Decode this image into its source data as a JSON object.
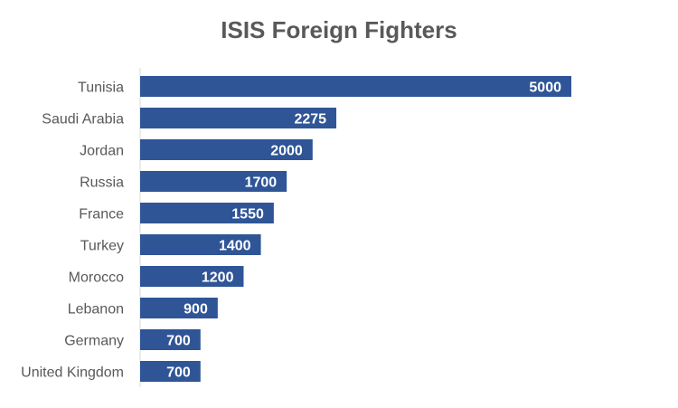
{
  "chart_data": {
    "type": "bar",
    "orientation": "horizontal",
    "title": "ISIS Foreign Fighters",
    "xlabel": "",
    "ylabel": "",
    "categories": [
      "Tunisia",
      "Saudi Arabia",
      "Jordan",
      "Russia",
      "France",
      "Turkey",
      "Morocco",
      "Lebanon",
      "Germany",
      "United Kingdom"
    ],
    "values": [
      5000,
      2275,
      2000,
      1700,
      1550,
      1400,
      1200,
      900,
      700,
      700
    ],
    "xlim": [
      0,
      5000
    ],
    "grid": false,
    "legend": "none",
    "data_labels": "inside-end",
    "bar_color": "#2F5597",
    "label_color": "#ffffff",
    "text_color": "#595959"
  }
}
